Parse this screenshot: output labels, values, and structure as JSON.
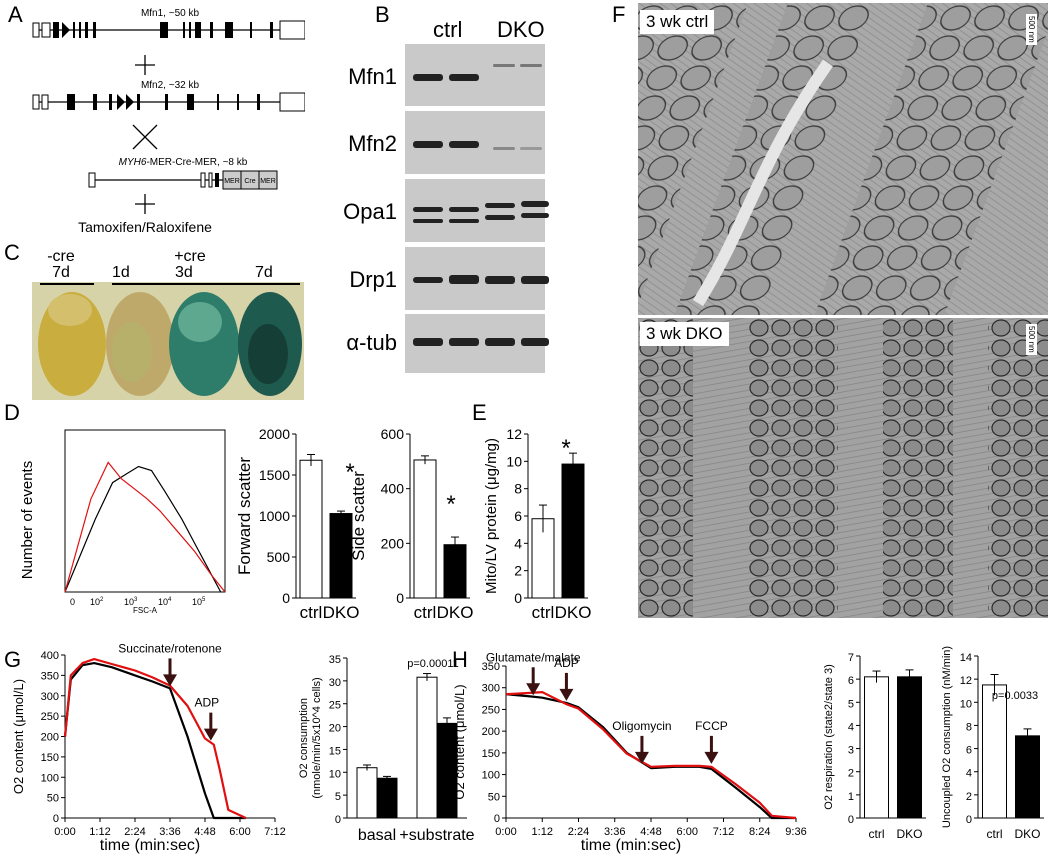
{
  "panels": {
    "A": "A",
    "B": "B",
    "C": "C",
    "D": "D",
    "E": "E",
    "F": "F",
    "G": "G",
    "H": "H"
  },
  "panelA": {
    "mfn1": "Mfn1, ~50 kb",
    "mfn2": "Mfn2, ~32 kb",
    "mer_gene": "MYH6",
    "mer_rest": "-MER-Cre-MER, ~8 kb",
    "box1": "MER",
    "box2": "Cre",
    "box3": "MER",
    "tamox": "Tamoxifen/Raloxifene"
  },
  "panelB": {
    "ctrl": "ctrl",
    "dko": "DKO",
    "rows": [
      "Mfn1",
      "Mfn2",
      "Opa1",
      "Drp1",
      "α-tub"
    ]
  },
  "panelC": {
    "minus": "-cre",
    "plus": "+cre",
    "days": [
      "7d",
      "1d",
      "3d",
      "7d"
    ]
  },
  "panelD": {
    "hist_ylabel": "Number of events",
    "hist_xlabel": "FSC-A",
    "hist_ticks": [
      "0",
      "10",
      "10",
      "10",
      "10"
    ],
    "hist_exp": [
      "2",
      "3",
      "4",
      "5"
    ],
    "fs": {
      "ylabel": "Forward scatter",
      "ticks": [
        "0",
        "500",
        "1000",
        "1500",
        "2000"
      ],
      "cats": [
        "ctrl",
        "DKO"
      ],
      "star": "*"
    },
    "ss": {
      "ylabel": "Side scatter",
      "ticks": [
        "0",
        "200",
        "400",
        "600"
      ],
      "cats": [
        "ctrl",
        "DKO"
      ],
      "star": "*"
    }
  },
  "panelE": {
    "ylabel": "Mito/LV protein (μg/mg)",
    "ticks": [
      "0",
      "2",
      "4",
      "6",
      "8",
      "10",
      "12"
    ],
    "cats": [
      "ctrl",
      "DKO"
    ],
    "star": "*"
  },
  "panelF": {
    "top": "3 wk ctrl",
    "bottom": "3 wk DKO",
    "scale": "500 nm"
  },
  "panelG": {
    "ylabel": "O2 content (μmol/L)",
    "xlabel": "time (min:sec)",
    "xticks": [
      "0:00",
      "1:12",
      "2:24",
      "3:36",
      "4:48",
      "6:00",
      "7:12"
    ],
    "yticks": [
      "0",
      "50",
      "100",
      "150",
      "200",
      "250",
      "300",
      "350",
      "400"
    ],
    "arrow1": "Succinate/rotenone",
    "arrow2": "ADP",
    "bar_ylabel1": "O2 consumption",
    "bar_ylabel2": "(nmole/min/5x10^4 cells)",
    "bar_yticks": [
      "0",
      "5",
      "10",
      "15",
      "20",
      "25",
      "30",
      "35"
    ],
    "bar_cats": [
      "basal",
      "+substrate"
    ],
    "pval": "p=0.00011"
  },
  "panelH": {
    "ylabel": "O2 content (μmol/L)",
    "xlabel": "time (min:sec)",
    "xticks": [
      "0:00",
      "1:12",
      "2:24",
      "3:36",
      "4:48",
      "6:00",
      "7:12",
      "8:24",
      "9:36"
    ],
    "yticks": [
      "0",
      "50",
      "100",
      "150",
      "200",
      "250",
      "300",
      "350"
    ],
    "arrow1": "Glutamate/malate",
    "arrow2": "ADP",
    "arrow3": "Oligomycin",
    "arrow4": "FCCP",
    "rc": {
      "ylabel": "O2 respiration (state2/state 3)",
      "ticks": [
        "0",
        "1",
        "2",
        "3",
        "4",
        "5",
        "6",
        "7"
      ],
      "cats": [
        "ctrl",
        "DKO"
      ]
    },
    "uc": {
      "ylabel": "Uncoupled O2 consumption (nM/min)",
      "ticks": [
        "0",
        "2",
        "4",
        "6",
        "8",
        "10",
        "12",
        "14"
      ],
      "cats": [
        "ctrl",
        "DKO"
      ],
      "pval": "p=0.0033"
    }
  },
  "chart_data": [
    {
      "type": "line",
      "id": "D-histogram",
      "xlabel": "FSC-A",
      "ylabel": "Number of events",
      "ylim": [
        0,
        400
      ],
      "series": [
        {
          "color": "#000000",
          "x": [
            1.3,
            2.0,
            2.4,
            2.7,
            3.0,
            3.3,
            3.6,
            4.0,
            4.3,
            4.6,
            4.9
          ],
          "values": [
            0,
            180,
            270,
            290,
            310,
            300,
            250,
            180,
            120,
            60,
            0
          ]
        },
        {
          "color": "#e01010",
          "x": [
            1.3,
            1.9,
            2.3,
            2.6,
            2.9,
            3.2,
            3.5,
            3.9,
            4.3,
            4.7,
            5.0
          ],
          "values": [
            0,
            230,
            320,
            280,
            255,
            230,
            200,
            150,
            100,
            40,
            0
          ]
        }
      ]
    },
    {
      "type": "bar",
      "id": "D-forward",
      "categories": [
        "ctrl",
        "DKO"
      ],
      "values": [
        1680,
        1030
      ],
      "errors": [
        70,
        30
      ],
      "ylabel": "Forward scatter",
      "ylim": [
        0,
        2000
      ]
    },
    {
      "type": "bar",
      "id": "D-side",
      "categories": [
        "ctrl",
        "DKO"
      ],
      "values": [
        505,
        195
      ],
      "errors": [
        15,
        28
      ],
      "ylabel": "Side scatter",
      "ylim": [
        0,
        600
      ]
    },
    {
      "type": "bar",
      "id": "E",
      "categories": [
        "ctrl",
        "DKO"
      ],
      "values": [
        5.8,
        9.8
      ],
      "errors": [
        1.0,
        0.8
      ],
      "ylabel": "Mito/LV protein (μg/mg)",
      "ylim": [
        0,
        12
      ]
    },
    {
      "type": "line",
      "id": "G-trace",
      "xlabel": "time (min:sec)",
      "ylabel": "O2 content (μmol/L)",
      "ylim": [
        0,
        400
      ],
      "x": [
        "0:00",
        "0:12",
        "0:36",
        "1:00",
        "1:36",
        "2:24",
        "3:00",
        "3:36",
        "4:12",
        "4:48",
        "5:06",
        "5:18",
        "5:36",
        "6:12"
      ],
      "series": [
        {
          "color": "#000000",
          "values": [
            200,
            340,
            375,
            380,
            370,
            350,
            335,
            318,
            200,
            60,
            0,
            0,
            0,
            0
          ]
        },
        {
          "color": "#e01010",
          "values": [
            200,
            350,
            380,
            390,
            378,
            362,
            345,
            325,
            275,
            195,
            180,
            120,
            20,
            0
          ]
        }
      ]
    },
    {
      "type": "bar",
      "id": "G-bars",
      "categories": [
        "basal",
        "+substrate"
      ],
      "series": [
        {
          "name": "ctrl",
          "values": [
            11.0,
            30.8
          ],
          "errors": [
            0.6,
            0.8
          ]
        },
        {
          "name": "DKO",
          "values": [
            8.7,
            20.7
          ],
          "errors": [
            0.4,
            1.2
          ]
        }
      ],
      "ylabel": "O2 consumption (nmole/min/5x10^4 cells)",
      "ylim": [
        0,
        35
      ]
    },
    {
      "type": "line",
      "id": "H-trace",
      "xlabel": "time (min:sec)",
      "ylabel": "O2 content (μmol/L)",
      "ylim": [
        0,
        350
      ],
      "x": [
        "0:00",
        "0:48",
        "1:12",
        "2:00",
        "2:24",
        "3:12",
        "4:00",
        "4:48",
        "5:36",
        "6:24",
        "6:48",
        "7:36",
        "8:24",
        "8:48",
        "9:36"
      ],
      "series": [
        {
          "color": "#000000",
          "values": [
            285,
            280,
            277,
            265,
            255,
            210,
            150,
            115,
            118,
            118,
            113,
            70,
            25,
            0,
            0
          ]
        },
        {
          "color": "#e01010",
          "values": [
            285,
            288,
            290,
            262,
            252,
            205,
            148,
            118,
            120,
            120,
            118,
            78,
            35,
            5,
            0
          ]
        }
      ]
    },
    {
      "type": "bar",
      "id": "H-rc",
      "categories": [
        "ctrl",
        "DKO"
      ],
      "values": [
        6.1,
        6.1
      ],
      "errors": [
        0.25,
        0.3
      ],
      "ylabel": "O2 respiration (state2/state 3)",
      "ylim": [
        0,
        7
      ]
    },
    {
      "type": "bar",
      "id": "H-uc",
      "categories": [
        "ctrl",
        "DKO"
      ],
      "values": [
        11.5,
        7.1
      ],
      "errors": [
        0.9,
        0.6
      ],
      "ylabel": "Uncoupled O2 consumption (nM/min)",
      "ylim": [
        0,
        14
      ]
    }
  ]
}
